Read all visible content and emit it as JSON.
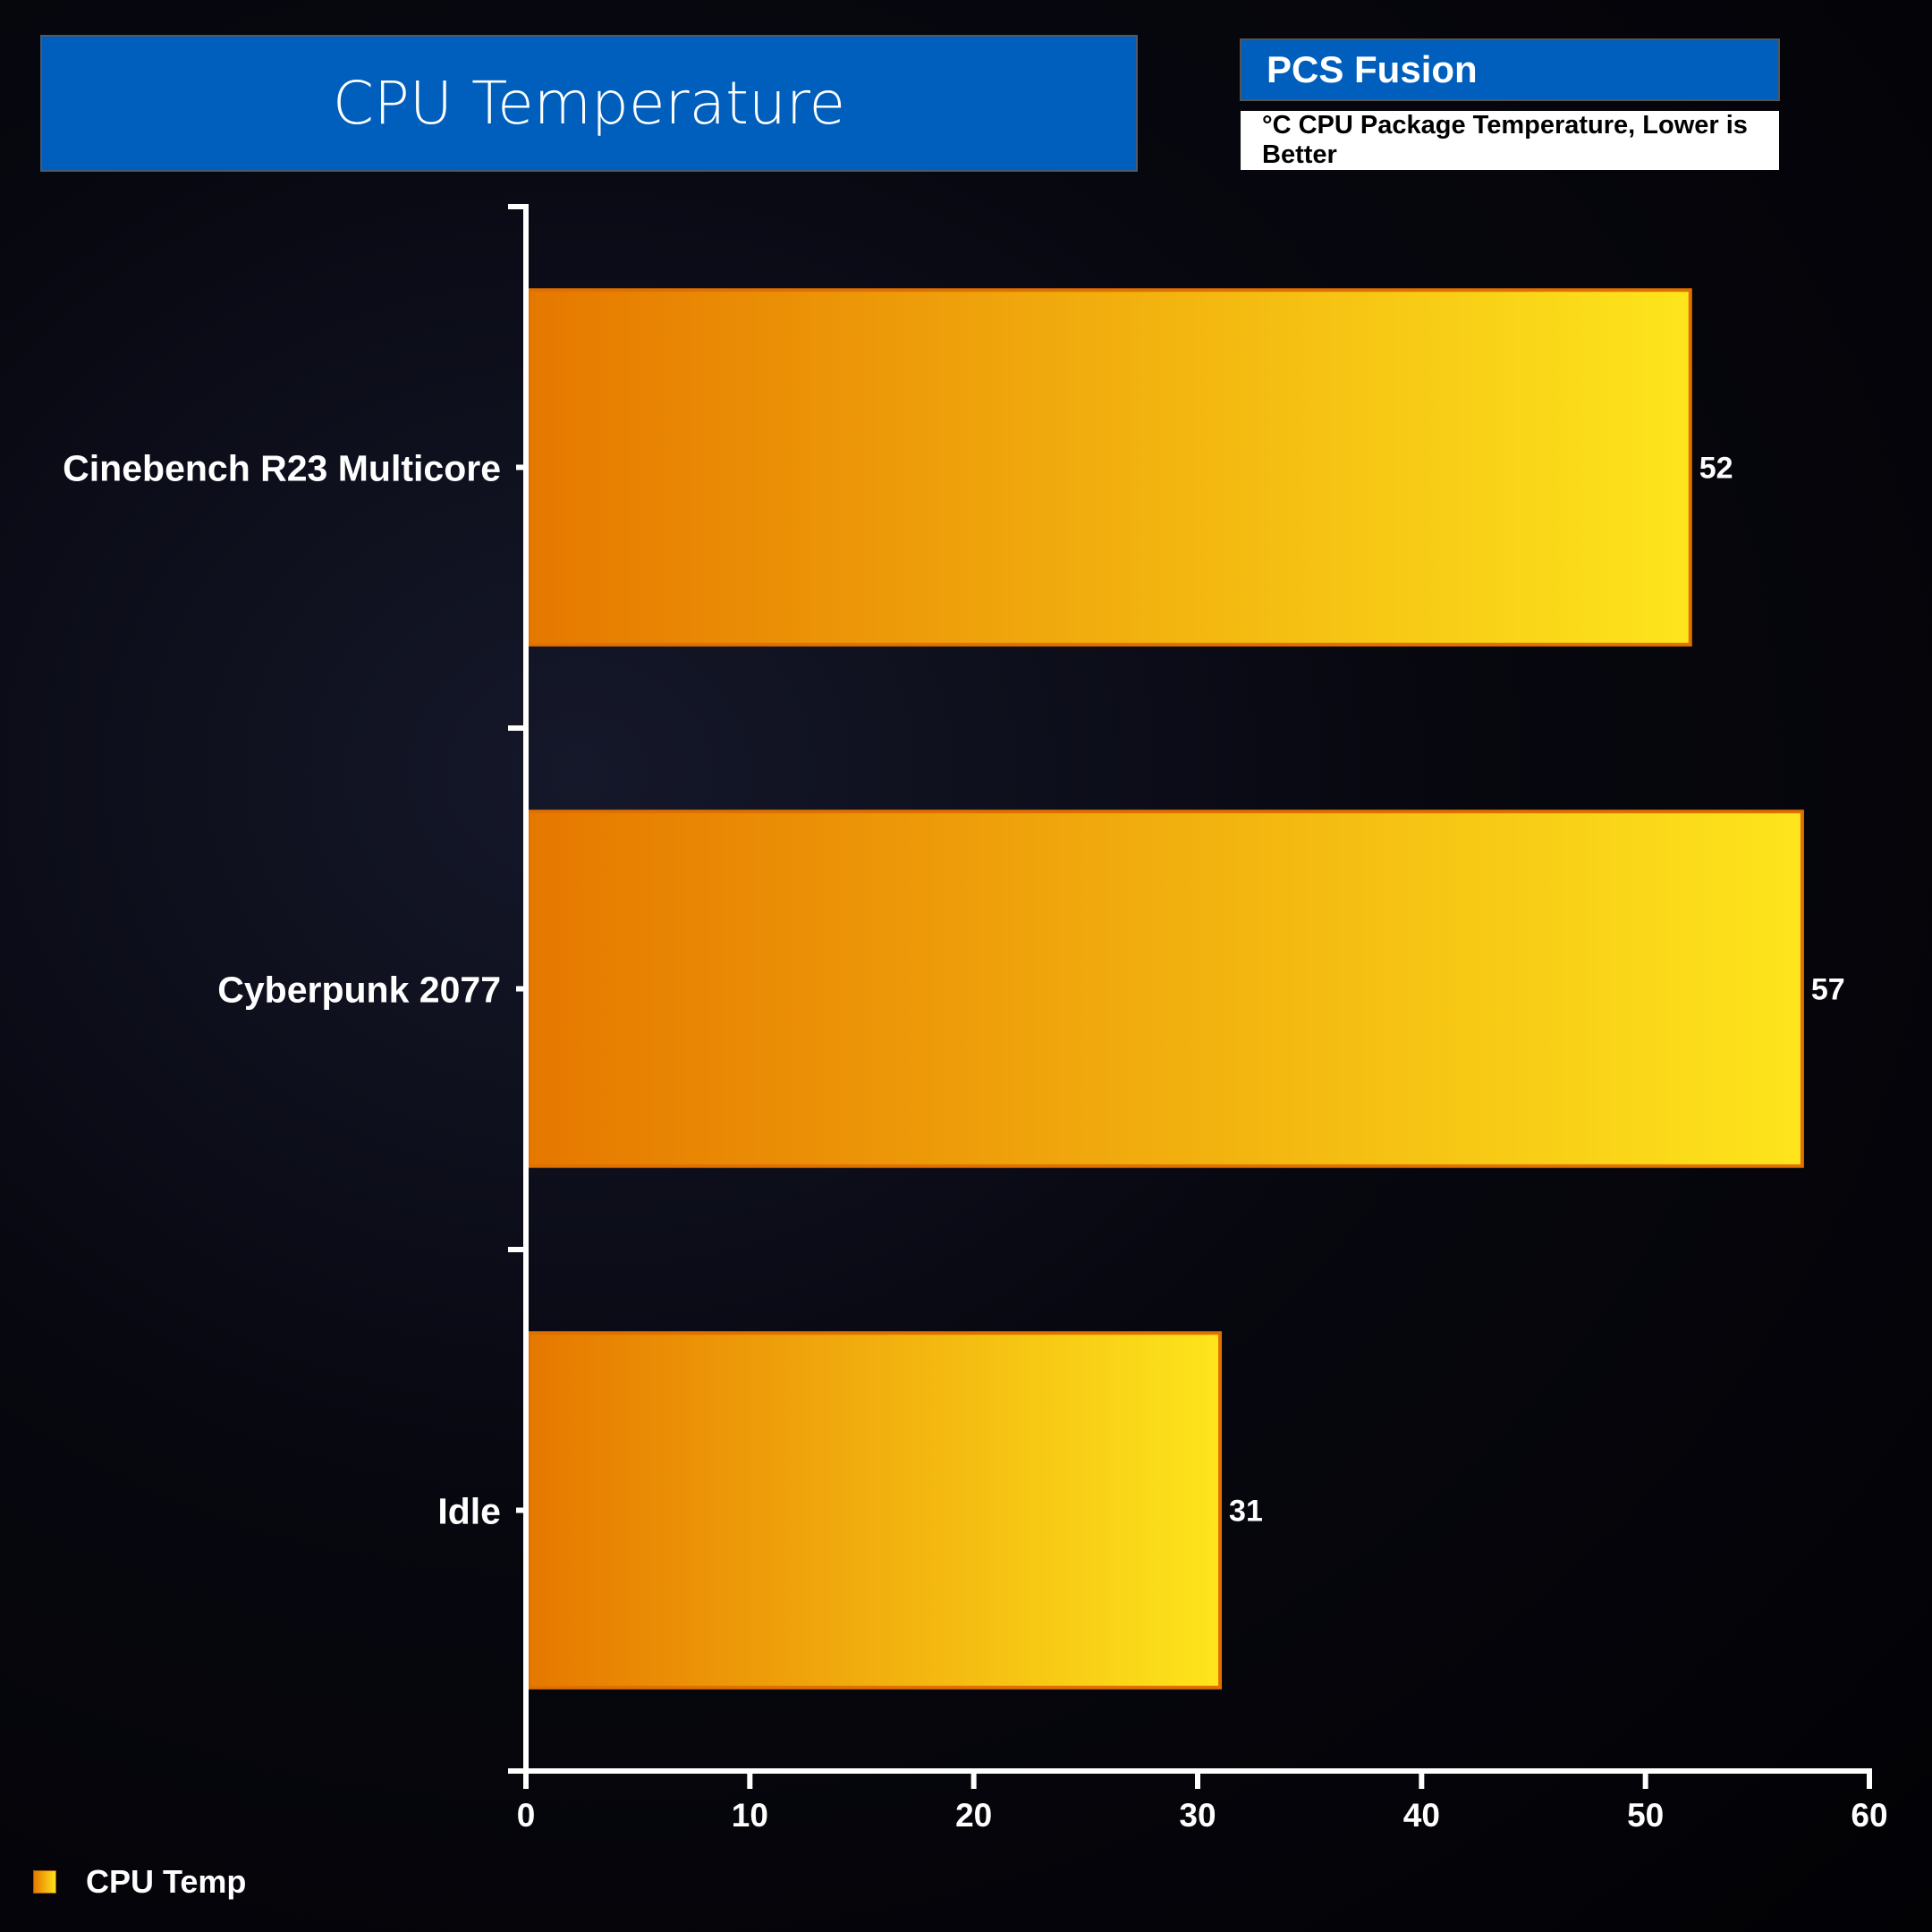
{
  "title": "CPU Temperature",
  "system": "PCS Fusion",
  "description": "°C CPU Package Temperature, Lower is Better",
  "chart_data": {
    "type": "bar",
    "orientation": "horizontal",
    "categories": [
      "Cinebench R23 Multicore",
      "Cyberpunk 2077",
      "Idle"
    ],
    "series": [
      {
        "name": "CPU Temp",
        "values": [
          52,
          57,
          31
        ]
      }
    ],
    "xlim": [
      0,
      60
    ],
    "xticks": [
      0,
      10,
      20,
      30,
      40,
      50,
      60
    ],
    "data_labels": [
      "52",
      "57",
      "31"
    ],
    "legend": "bottom-left",
    "grid": false,
    "colors": {
      "bar_start": "#e67800",
      "bar_end": "#fde51c",
      "border": "#e07000"
    }
  }
}
